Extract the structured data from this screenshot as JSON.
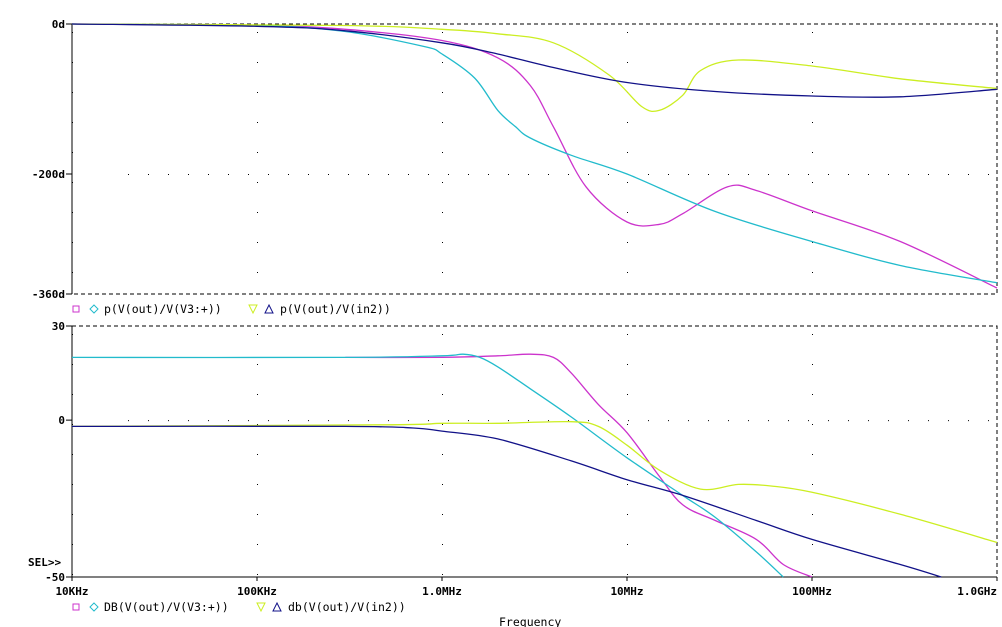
{
  "chart_data": [
    {
      "type": "line",
      "name": "phase-plot",
      "x_scale": "log",
      "xlim": [
        10000,
        1000000000
      ],
      "ylim": [
        -360,
        0
      ],
      "y_tick_labels": [
        {
          "value": 0,
          "label": "0d"
        },
        {
          "value": -200,
          "label": "-200d"
        },
        {
          "value": -360,
          "label": "-360d"
        }
      ],
      "grid": "dotted",
      "legend_text": [
        "p(V(out)/V(V3:+))",
        "p(V(out)/V(in2))"
      ],
      "series": [
        {
          "color": "#cc33cc",
          "marker": "square",
          "x": [
            10000,
            100000,
            300000,
            1000000,
            2000000,
            3000000,
            4000000,
            6000000,
            10000000,
            15000000,
            20000000,
            35000000,
            50000000,
            100000000,
            300000000,
            1000000000
          ],
          "y": [
            0,
            -2,
            -7,
            -22,
            -45,
            -82,
            -137,
            -217,
            -264,
            -267,
            -253,
            -217,
            -222,
            -249,
            -290,
            -352
          ]
        },
        {
          "color": "#22bbcc",
          "marker": "diamond",
          "x": [
            10000,
            100000,
            300000,
            800000,
            1000000,
            1500000,
            2000000,
            2500000,
            3000000,
            5000000,
            10000000,
            30000000,
            100000000,
            300000000,
            1000000000
          ],
          "y": [
            0,
            -2,
            -10,
            -30,
            -40,
            -72,
            -115,
            -137,
            -152,
            -175,
            -200,
            -250,
            -290,
            -322,
            -345
          ]
        },
        {
          "color": "#ccee22",
          "marker": "triangle-down",
          "x": [
            10000,
            300000,
            1000000,
            2000000,
            4000000,
            8000000,
            12000000,
            15000000,
            20000000,
            25000000,
            40000000,
            100000000,
            300000000,
            1000000000
          ],
          "y": [
            0,
            -2,
            -7,
            -13,
            -25,
            -68,
            -110,
            -115,
            -95,
            -62,
            -48,
            -56,
            -73,
            -86
          ]
        },
        {
          "color": "#111188",
          "marker": "triangle-up",
          "x": [
            10000,
            100000,
            300000,
            1000000,
            2000000,
            4000000,
            10000000,
            30000000,
            100000000,
            300000000,
            1000000000
          ],
          "y": [
            0,
            -3,
            -9,
            -25,
            -40,
            -58,
            -78,
            -90,
            -96,
            -97,
            -87
          ]
        }
      ]
    },
    {
      "type": "line",
      "name": "magnitude-plot",
      "x_scale": "log",
      "xlim": [
        10000,
        1000000000
      ],
      "ylim": [
        -50,
        30
      ],
      "y_ticks": [
        30,
        0,
        -50
      ],
      "x_tick_labels": [
        {
          "value": 10000,
          "label": "10KHz"
        },
        {
          "value": 100000,
          "label": "100KHz"
        },
        {
          "value": 1000000,
          "label": "1.0MHz"
        },
        {
          "value": 10000000,
          "label": "10MHz"
        },
        {
          "value": 100000000,
          "label": "100MHz"
        },
        {
          "value": 1000000000,
          "label": "1.0GHz"
        }
      ],
      "xlabel": "Frequency",
      "cursor_label": "SEL>>",
      "grid": "dotted",
      "legend_text": [
        "DB(V(out)/V(V3:+))",
        "db(V(out)/V(in2))"
      ],
      "series": [
        {
          "color": "#cc33cc",
          "marker": "square",
          "x": [
            300000,
            1000000,
            2000000,
            3000000,
            4000000,
            5000000,
            7000000,
            10000000,
            15000000,
            20000000,
            30000000,
            50000000,
            70000000,
            100000000
          ],
          "y": [
            20,
            20,
            20.5,
            21,
            20,
            15,
            5,
            -4,
            -18,
            -27,
            -32,
            -38,
            -46,
            -50
          ]
        },
        {
          "color": "#22bbcc",
          "marker": "diamond",
          "x": [
            10000,
            300000,
            1000000,
            1300000,
            1600000,
            2000000,
            3000000,
            5000000,
            10000000,
            20000000,
            30000000,
            50000000,
            70000000
          ],
          "y": [
            20,
            20,
            20.5,
            21,
            20,
            17,
            10,
            1,
            -12,
            -24,
            -31,
            -42,
            -50
          ]
        },
        {
          "color": "#ccee22",
          "marker": "triangle-down",
          "x": [
            10000,
            500000,
            1000000,
            2000000,
            5000000,
            7000000,
            10000000,
            15000000,
            25000000,
            40000000,
            60000000,
            100000000,
            300000000,
            1000000000
          ],
          "y": [
            -2,
            -1.5,
            -1,
            -1,
            -0.5,
            -2,
            -8,
            -16,
            -22,
            -20.5,
            -21,
            -23,
            -30,
            -39
          ]
        },
        {
          "color": "#111188",
          "marker": "triangle-up",
          "x": [
            10000,
            300000,
            700000,
            1000000,
            2000000,
            5000000,
            10000000,
            20000000,
            50000000,
            100000000,
            300000000,
            500000000
          ],
          "y": [
            -2,
            -2,
            -2.5,
            -3.5,
            -6,
            -13,
            -19,
            -24,
            -32,
            -38,
            -46,
            -50
          ]
        }
      ]
    }
  ]
}
